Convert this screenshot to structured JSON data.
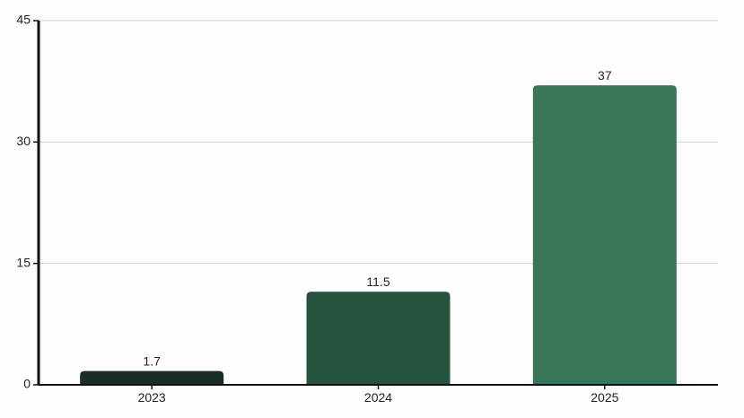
{
  "chart_data": {
    "type": "bar",
    "title": "",
    "xlabel": "",
    "ylabel": "",
    "categories": [
      "2023",
      "2024",
      "2025"
    ],
    "values": [
      1.7,
      11.5,
      37
    ],
    "value_labels": [
      "1.7",
      "11.5",
      "37"
    ],
    "ylim": [
      0,
      45
    ],
    "yticks": [
      0,
      15,
      30,
      45
    ],
    "ytick_labels": [
      "0",
      "15",
      "30",
      "45"
    ],
    "grid": true,
    "legend": "none",
    "colors": [
      "#1b2e26",
      "#27523e",
      "#377658"
    ],
    "grid_color": "#d4d4d4",
    "axis_color": "#111111"
  }
}
